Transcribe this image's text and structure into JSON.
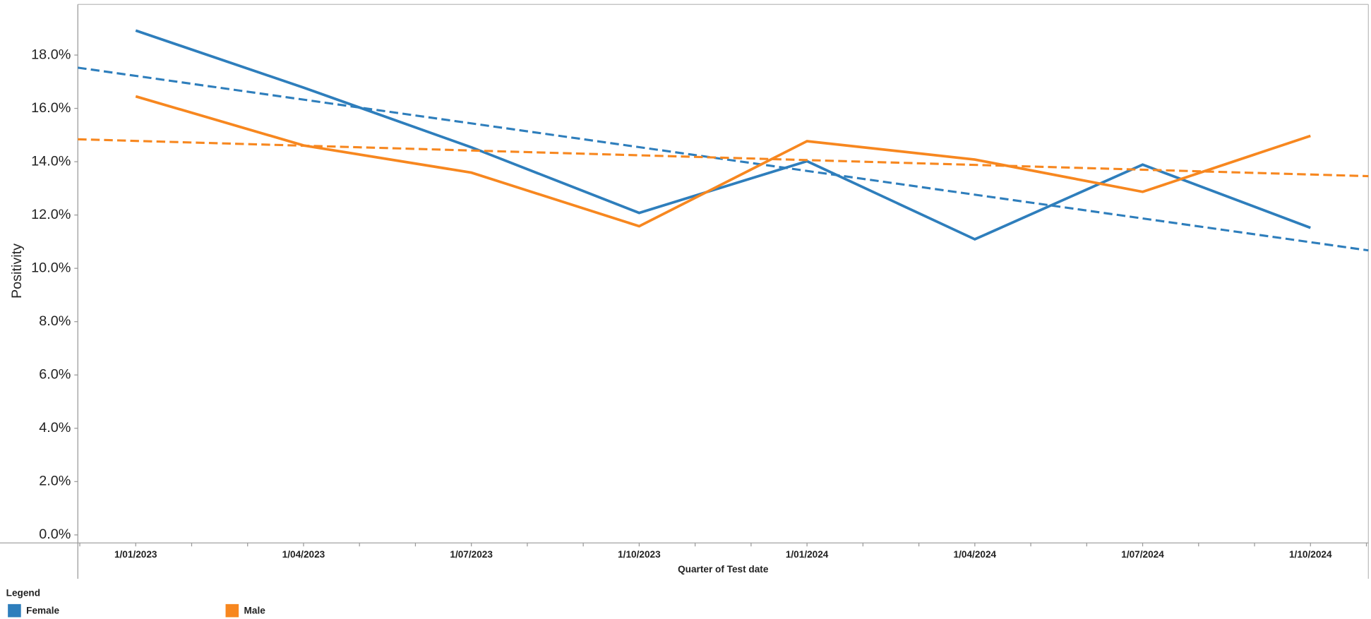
{
  "chart_data": {
    "type": "line",
    "x_label": "Quarter of Test date",
    "y_label": "Positivity",
    "categories": [
      "1/01/2023",
      "1/04/2023",
      "1/07/2023",
      "1/10/2023",
      "1/01/2024",
      "1/04/2024",
      "1/07/2024",
      "1/10/2024"
    ],
    "series": [
      {
        "name": "Female",
        "color": "#2e7ebc",
        "values": [
          18.92,
          16.78,
          14.54,
          12.08,
          14.02,
          11.09,
          13.89,
          11.52
        ],
        "trend": [
          17.22,
          10.98
        ]
      },
      {
        "name": "Male",
        "color": "#f7871f",
        "values": [
          16.45,
          14.61,
          13.59,
          11.58,
          14.77,
          14.08,
          12.87,
          14.97
        ],
        "trend": [
          14.78,
          13.52
        ]
      }
    ],
    "ylim": [
      -0.3,
      19.9
    ],
    "yticks": [
      {
        "value": 0,
        "label": "0.0%"
      },
      {
        "value": 2,
        "label": "2.0%"
      },
      {
        "value": 4,
        "label": "4.0%"
      },
      {
        "value": 6,
        "label": "6.0%"
      },
      {
        "value": 8,
        "label": "8.0%"
      },
      {
        "value": 10,
        "label": "10.0%"
      },
      {
        "value": 12,
        "label": "12.0%"
      },
      {
        "value": 14,
        "label": "14.0%"
      },
      {
        "value": 16,
        "label": "16.0%"
      },
      {
        "value": 18,
        "label": "18.0%"
      }
    ],
    "legend_title": "Legend",
    "grid": false
  }
}
